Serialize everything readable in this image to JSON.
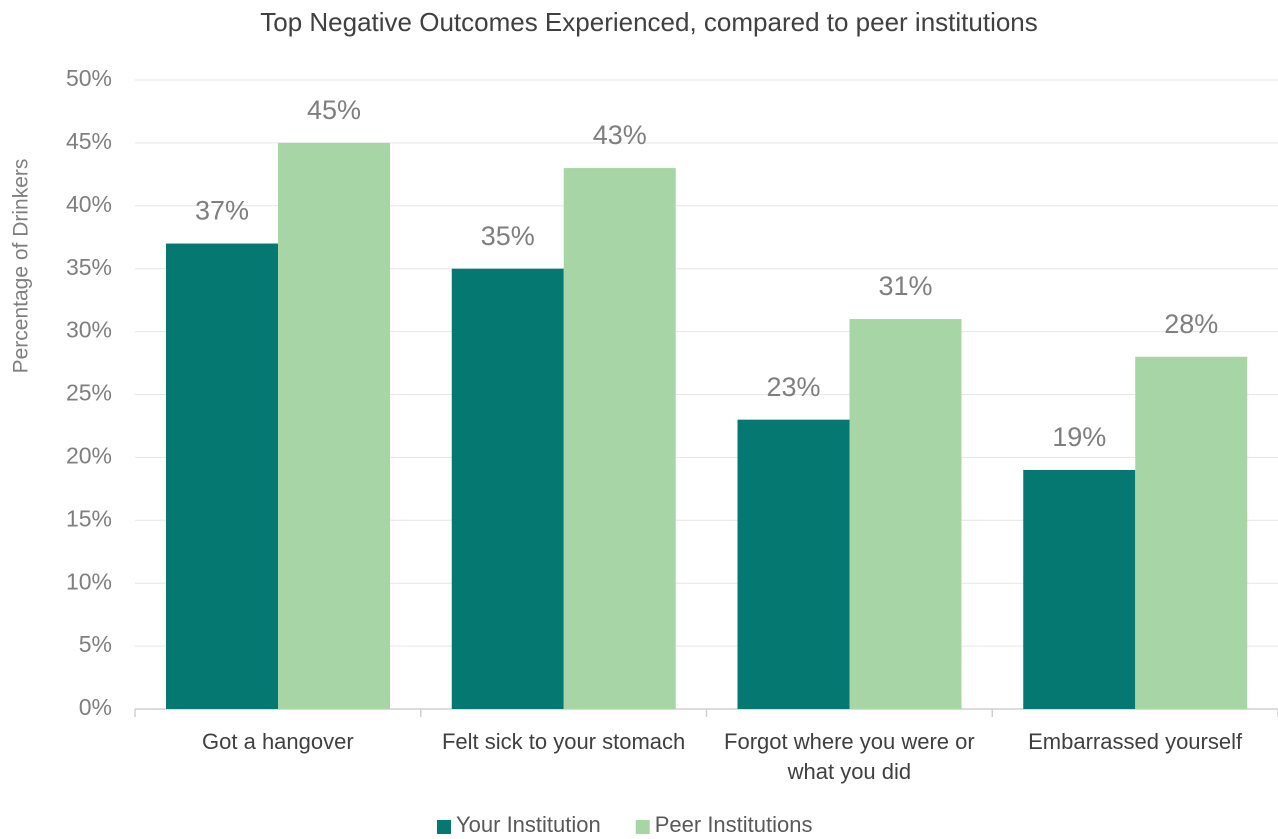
{
  "chart_data": {
    "type": "bar",
    "title": "Top Negative Outcomes Experienced, compared to peer institutions",
    "y_label": "Percentage of Drinkers",
    "categories": [
      "Got a hangover",
      "Felt sick to your stomach",
      "Forgot where you were or what you did",
      "Embarrassed yourself"
    ],
    "series": [
      {
        "name": "Your Institution",
        "color": "#057872",
        "values": [
          37,
          35,
          23,
          19
        ],
        "value_labels": [
          "37%",
          "35%",
          "23%",
          "19%"
        ]
      },
      {
        "name": "Peer Institutions",
        "color": "#a8d5a6",
        "values": [
          45,
          43,
          31,
          28
        ],
        "value_labels": [
          "45%",
          "43%",
          "31%",
          "28%"
        ]
      }
    ],
    "ylim": [
      0,
      50
    ],
    "yticks": [
      {
        "value": 0,
        "label": "0%"
      },
      {
        "value": 5,
        "label": "5%"
      },
      {
        "value": 10,
        "label": "10%"
      },
      {
        "value": 15,
        "label": "15%"
      },
      {
        "value": 20,
        "label": "20%"
      },
      {
        "value": 25,
        "label": "25%"
      },
      {
        "value": 30,
        "label": "30%"
      },
      {
        "value": 35,
        "label": "35%"
      },
      {
        "value": 40,
        "label": "40%"
      },
      {
        "value": 45,
        "label": "45%"
      },
      {
        "value": 50,
        "label": "50%"
      }
    ],
    "grid": true,
    "legend": "bottom"
  }
}
